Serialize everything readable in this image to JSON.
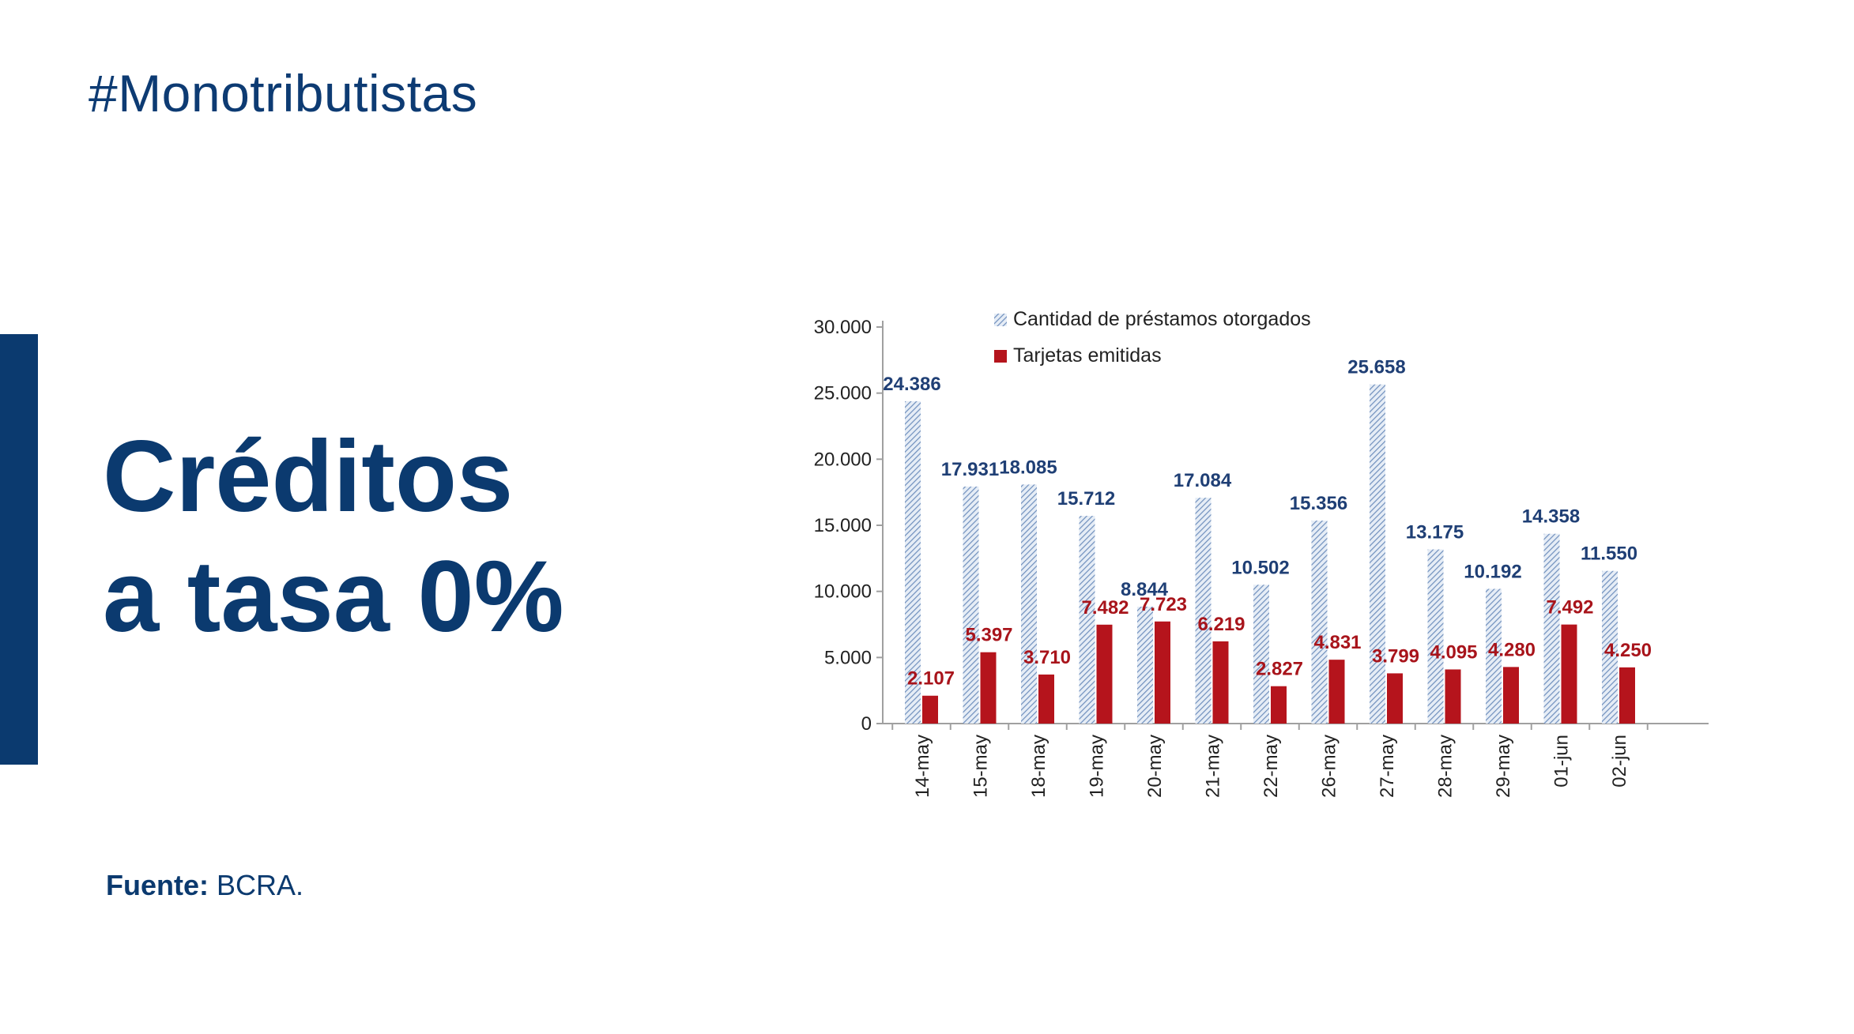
{
  "header": {
    "hashtag": "#Monotributistas"
  },
  "headline": {
    "line1": "Créditos",
    "line2": "a tasa 0%"
  },
  "source": {
    "label": "Fuente:",
    "value": "BCRA."
  },
  "colors": {
    "brand": "#0b3a6f",
    "series_blue": "#7f9fc9",
    "series_red": "#b5141c"
  },
  "chart_data": {
    "type": "bar",
    "title": "",
    "xlabel": "",
    "ylabel": "",
    "ylim": [
      0,
      30000
    ],
    "y_ticks": [
      {
        "value": 0,
        "label": "0"
      },
      {
        "value": 5000,
        "label": "5.000"
      },
      {
        "value": 10000,
        "label": "10.000"
      },
      {
        "value": 15000,
        "label": "15.000"
      },
      {
        "value": 20000,
        "label": "20.000"
      },
      {
        "value": 25000,
        "label": "25.000"
      },
      {
        "value": 30000,
        "label": "30.000"
      }
    ],
    "categories": [
      "14-may",
      "15-may",
      "18-may",
      "19-may",
      "20-may",
      "21-may",
      "22-may",
      "26-may",
      "27-may",
      "28-may",
      "29-may",
      "01-jun",
      "02-jun"
    ],
    "legend_position": "top",
    "series": [
      {
        "name": "Cantidad de préstamos otorgados",
        "values": [
          24386,
          17931,
          18085,
          15712,
          8844,
          17084,
          10502,
          15356,
          25658,
          13175,
          10192,
          14358,
          11550
        ],
        "labels": [
          "24.386",
          "17.931",
          "18.085",
          "15.712",
          "8.844",
          "17.084",
          "10.502",
          "15.356",
          "25.658",
          "13.175",
          "10.192",
          "14.358",
          "11.550"
        ]
      },
      {
        "name": "Tarjetas emitidas",
        "values": [
          2107,
          5397,
          3710,
          7482,
          7723,
          6219,
          2827,
          4831,
          3799,
          4095,
          4280,
          7492,
          4250
        ],
        "labels": [
          "2.107",
          "5.397",
          "3.710",
          "7.482",
          "7.723",
          "6.219",
          "2.827",
          "4.831",
          "3.799",
          "4.095",
          "4.280",
          "7.492",
          "4.250"
        ]
      }
    ]
  }
}
